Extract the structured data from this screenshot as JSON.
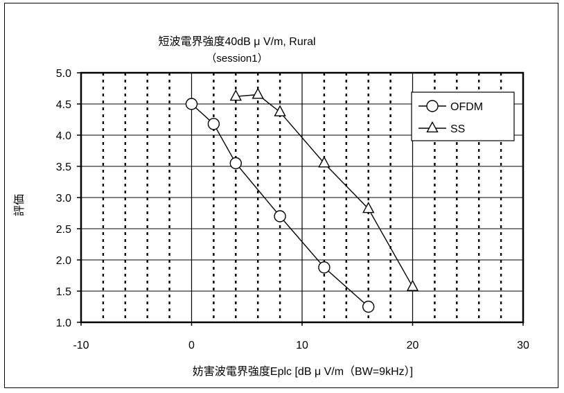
{
  "chart_data": {
    "type": "line",
    "title": "短波電界強度40dB μ V/m, Rural",
    "subtitle": "（session1）",
    "xlabel": "妨害波電界強度Eplc [dB μ V/m（BW=9kHz）]",
    "ylabel": "評価",
    "xlim": [
      -10,
      30
    ],
    "ylim": [
      1.0,
      5.0
    ],
    "xticks": [
      -10,
      0,
      10,
      20,
      30
    ],
    "xtick_labels": [
      "-10",
      "0",
      "10",
      "20",
      "30"
    ],
    "yticks": [
      1.0,
      1.5,
      2.0,
      2.5,
      3.0,
      3.5,
      4.0,
      4.5,
      5.0
    ],
    "ytick_labels": [
      "1.0",
      "1.5",
      "2.0",
      "2.5",
      "3.0",
      "3.5",
      "4.0",
      "4.5",
      "5.0"
    ],
    "grid": "horizontal solid; vertical solid at major ticks, dotted every 2 units",
    "legend": "top-right",
    "series": [
      {
        "name": "OFDM",
        "marker": "circle",
        "x": [
          0,
          2,
          4,
          8,
          12,
          16
        ],
        "y": [
          4.5,
          4.18,
          3.55,
          2.7,
          1.88,
          1.25
        ]
      },
      {
        "name": "SS",
        "marker": "triangle",
        "x": [
          4,
          6,
          8,
          12,
          16,
          20
        ],
        "y": [
          4.62,
          4.65,
          4.37,
          3.55,
          2.82,
          1.57
        ]
      }
    ]
  }
}
